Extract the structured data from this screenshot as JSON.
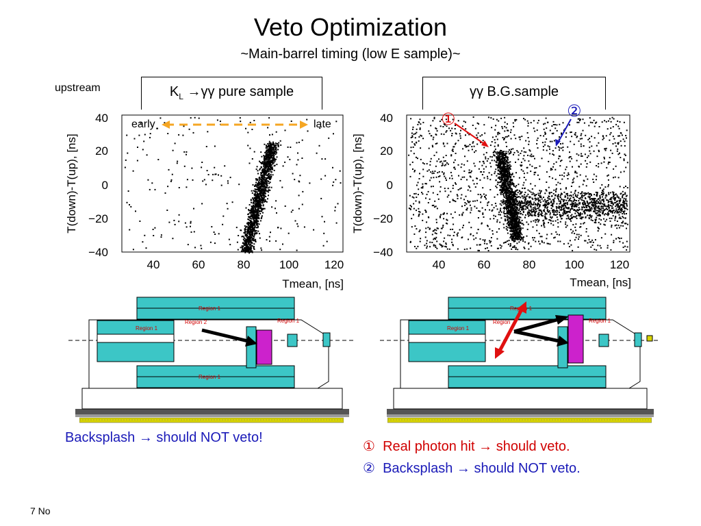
{
  "slide": {
    "title": "Veto Optimization",
    "subtitle": "~Main-barrel timing (low E sample)~",
    "upstream_label": "upstream",
    "footer": "7 No"
  },
  "left_panel": {
    "header_main": "K",
    "header_sub": "L",
    "header_rest": " →γγ pure sample",
    "early_label": "early",
    "late_label": "late",
    "note": "Backsplash → should NOT veto!"
  },
  "right_panel": {
    "header": "γγ B.G.sample",
    "marker1": "①",
    "marker2": "②",
    "note1_num": "①",
    "note1": "Real photon hit → should veto.",
    "note2_num": "②",
    "note2": "Backsplash → should NOT veto."
  },
  "plots": {
    "left": {
      "ylabel": "T(down)-T(up), [ns]",
      "xlabel": "Tmean, [ns]",
      "yticks": [
        "40",
        "20",
        "0",
        "−20",
        "−40"
      ],
      "xticks": [
        "40",
        "60",
        "80",
        "100",
        "120"
      ]
    },
    "right": {
      "ylabel": "T(down)-T(up), [ns]",
      "xlabel": "Tmean, [ns]",
      "yticks": [
        "40",
        "20",
        "0",
        "−20",
        "−40"
      ],
      "xticks": [
        "40",
        "60",
        "80",
        "100",
        "120"
      ]
    }
  },
  "detector": {
    "region1": "Region 1",
    "region2": "Region 2",
    "region_right": "Region"
  },
  "colors": {
    "orange": "#f5a623",
    "red": "#e01010",
    "blue": "#1a1ab8",
    "black": "#000000",
    "cyan": "#3cc6c6",
    "magenta": "#cc22cc",
    "scale_yellow": "#d8d400"
  }
}
